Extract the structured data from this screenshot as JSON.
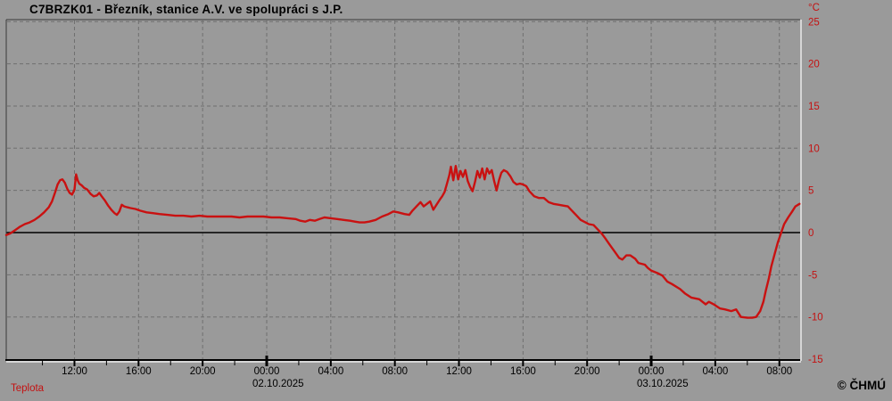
{
  "header": {
    "title": "C7BRZK01 - Březník, stanice A.V. ve spolupráci s J.P."
  },
  "footer": {
    "series_label": "Teplota",
    "copyright": "© ČHMÚ"
  },
  "colors": {
    "background": "#9a9a9a",
    "line": "#c91111",
    "axis_labels_y": "#c41111",
    "axis_labels_x": "#000000",
    "grid": "#6f6f6f",
    "axis": "#000000",
    "frame_dark": "#3a3a3a",
    "frame_light": "#e9e9e9"
  },
  "chart_data": {
    "type": "line",
    "title": "C7BRZK01 - Březník, stanice A.V. ve spolupráci s J.P.",
    "legend_position": "bottom-left",
    "grid": "dashed, every 4 h vertical and every 5 °C horizontal, solid black zero line",
    "y_axis": {
      "unit": "°C",
      "ticks": [
        25,
        20,
        15,
        10,
        5,
        0,
        -5,
        -10,
        -15
      ],
      "range": [
        -15,
        25
      ],
      "labels_side": "right",
      "zero_line_solid": true
    },
    "x_axis": {
      "unit": "time",
      "hours_from": "00:00 02.10.2025",
      "range_h": [
        -16.26,
        33.35
      ],
      "minor_tick_every_h": 2,
      "ticks": [
        {
          "t": -12,
          "label": "12:00"
        },
        {
          "t": -8,
          "label": "16:00"
        },
        {
          "t": -4,
          "label": "20:00"
        },
        {
          "t": 0,
          "label": "00:00",
          "midnight": true
        },
        {
          "t": 4,
          "label": "04:00"
        },
        {
          "t": 8,
          "label": "08:00"
        },
        {
          "t": 12,
          "label": "12:00"
        },
        {
          "t": 16,
          "label": "16:00"
        },
        {
          "t": 20,
          "label": "20:00"
        },
        {
          "t": 24,
          "label": "00:00",
          "midnight": true
        },
        {
          "t": 28,
          "label": "04:00"
        },
        {
          "t": 32,
          "label": "08:00"
        }
      ],
      "date_labels": [
        {
          "t": 0,
          "label": "02.10.2025"
        },
        {
          "t": 24,
          "label": "03.10.2025"
        }
      ]
    },
    "series": [
      {
        "name": "Teplota",
        "color": "#c91111",
        "points": [
          [
            -16.26,
            -0.3
          ],
          [
            -16.0,
            -0.1
          ],
          [
            -15.7,
            0.3
          ],
          [
            -15.4,
            0.7
          ],
          [
            -15.1,
            1.0
          ],
          [
            -14.8,
            1.2
          ],
          [
            -14.5,
            1.5
          ],
          [
            -14.2,
            1.9
          ],
          [
            -13.9,
            2.4
          ],
          [
            -13.6,
            3.0
          ],
          [
            -13.4,
            3.7
          ],
          [
            -13.2,
            4.8
          ],
          [
            -13.05,
            5.7
          ],
          [
            -12.9,
            6.2
          ],
          [
            -12.75,
            6.3
          ],
          [
            -12.6,
            5.9
          ],
          [
            -12.45,
            5.2
          ],
          [
            -12.3,
            4.7
          ],
          [
            -12.15,
            4.5
          ],
          [
            -12.0,
            5.1
          ],
          [
            -11.9,
            6.9
          ],
          [
            -11.8,
            6.2
          ],
          [
            -11.7,
            5.8
          ],
          [
            -11.55,
            5.6
          ],
          [
            -11.4,
            5.3
          ],
          [
            -11.2,
            5.1
          ],
          [
            -11.0,
            4.6
          ],
          [
            -10.8,
            4.3
          ],
          [
            -10.6,
            4.4
          ],
          [
            -10.45,
            4.7
          ],
          [
            -10.3,
            4.3
          ],
          [
            -10.1,
            3.8
          ],
          [
            -9.9,
            3.2
          ],
          [
            -9.7,
            2.7
          ],
          [
            -9.5,
            2.3
          ],
          [
            -9.35,
            2.1
          ],
          [
            -9.2,
            2.5
          ],
          [
            -9.05,
            3.3
          ],
          [
            -8.9,
            3.1
          ],
          [
            -8.7,
            3.0
          ],
          [
            -8.5,
            2.9
          ],
          [
            -8.2,
            2.8
          ],
          [
            -7.9,
            2.6
          ],
          [
            -7.5,
            2.4
          ],
          [
            -7.1,
            2.3
          ],
          [
            -6.7,
            2.2
          ],
          [
            -6.2,
            2.1
          ],
          [
            -5.7,
            2.0
          ],
          [
            -5.2,
            2.0
          ],
          [
            -4.7,
            1.9
          ],
          [
            -4.2,
            2.0
          ],
          [
            -3.7,
            1.9
          ],
          [
            -3.2,
            1.9
          ],
          [
            -2.7,
            1.9
          ],
          [
            -2.2,
            1.9
          ],
          [
            -1.7,
            1.8
          ],
          [
            -1.2,
            1.9
          ],
          [
            -0.7,
            1.9
          ],
          [
            -0.2,
            1.9
          ],
          [
            0.3,
            1.8
          ],
          [
            0.8,
            1.8
          ],
          [
            1.3,
            1.7
          ],
          [
            1.8,
            1.6
          ],
          [
            2.1,
            1.4
          ],
          [
            2.4,
            1.3
          ],
          [
            2.7,
            1.5
          ],
          [
            3.0,
            1.4
          ],
          [
            3.3,
            1.6
          ],
          [
            3.6,
            1.8
          ],
          [
            4.0,
            1.7
          ],
          [
            4.4,
            1.6
          ],
          [
            4.8,
            1.5
          ],
          [
            5.2,
            1.4
          ],
          [
            5.5,
            1.3
          ],
          [
            5.8,
            1.2
          ],
          [
            6.1,
            1.2
          ],
          [
            6.4,
            1.3
          ],
          [
            6.8,
            1.5
          ],
          [
            7.2,
            1.9
          ],
          [
            7.6,
            2.2
          ],
          [
            7.9,
            2.5
          ],
          [
            8.2,
            2.4
          ],
          [
            8.6,
            2.2
          ],
          [
            8.9,
            2.1
          ],
          [
            9.1,
            2.6
          ],
          [
            9.4,
            3.2
          ],
          [
            9.6,
            3.6
          ],
          [
            9.8,
            3.1
          ],
          [
            10.0,
            3.4
          ],
          [
            10.2,
            3.7
          ],
          [
            10.4,
            2.7
          ],
          [
            10.6,
            3.3
          ],
          [
            10.8,
            3.9
          ],
          [
            10.95,
            4.3
          ],
          [
            11.1,
            4.8
          ],
          [
            11.25,
            5.8
          ],
          [
            11.4,
            6.8
          ],
          [
            11.5,
            7.8
          ],
          [
            11.65,
            6.2
          ],
          [
            11.8,
            7.9
          ],
          [
            11.95,
            6.3
          ],
          [
            12.1,
            7.3
          ],
          [
            12.25,
            6.6
          ],
          [
            12.4,
            7.4
          ],
          [
            12.55,
            6.1
          ],
          [
            12.7,
            5.4
          ],
          [
            12.85,
            4.9
          ],
          [
            13.0,
            6.0
          ],
          [
            13.15,
            7.3
          ],
          [
            13.3,
            6.5
          ],
          [
            13.45,
            7.6
          ],
          [
            13.6,
            6.3
          ],
          [
            13.75,
            7.6
          ],
          [
            13.9,
            7.0
          ],
          [
            14.05,
            7.4
          ],
          [
            14.2,
            6.1
          ],
          [
            14.35,
            5.0
          ],
          [
            14.5,
            6.2
          ],
          [
            14.65,
            7.1
          ],
          [
            14.8,
            7.4
          ],
          [
            15.0,
            7.2
          ],
          [
            15.2,
            6.7
          ],
          [
            15.4,
            6.0
          ],
          [
            15.6,
            5.7
          ],
          [
            15.8,
            5.8
          ],
          [
            16.0,
            5.7
          ],
          [
            16.2,
            5.5
          ],
          [
            16.4,
            4.9
          ],
          [
            16.7,
            4.3
          ],
          [
            17.0,
            4.1
          ],
          [
            17.3,
            4.1
          ],
          [
            17.6,
            3.6
          ],
          [
            17.9,
            3.4
          ],
          [
            18.2,
            3.3
          ],
          [
            18.5,
            3.2
          ],
          [
            18.8,
            3.1
          ],
          [
            19.0,
            2.7
          ],
          [
            19.3,
            2.1
          ],
          [
            19.6,
            1.5
          ],
          [
            19.9,
            1.2
          ],
          [
            20.1,
            1.0
          ],
          [
            20.4,
            0.9
          ],
          [
            20.7,
            0.3
          ],
          [
            20.9,
            -0.1
          ],
          [
            21.1,
            -0.6
          ],
          [
            21.4,
            -1.4
          ],
          [
            21.7,
            -2.2
          ],
          [
            22.0,
            -3.0
          ],
          [
            22.2,
            -3.2
          ],
          [
            22.45,
            -2.7
          ],
          [
            22.7,
            -2.7
          ],
          [
            23.0,
            -3.1
          ],
          [
            23.2,
            -3.6
          ],
          [
            23.6,
            -3.8
          ],
          [
            23.8,
            -4.2
          ],
          [
            24.0,
            -4.5
          ],
          [
            24.4,
            -4.8
          ],
          [
            24.7,
            -5.1
          ],
          [
            25.0,
            -5.8
          ],
          [
            25.3,
            -6.1
          ],
          [
            25.8,
            -6.7
          ],
          [
            26.1,
            -7.2
          ],
          [
            26.5,
            -7.7
          ],
          [
            27.0,
            -7.9
          ],
          [
            27.4,
            -8.5
          ],
          [
            27.6,
            -8.2
          ],
          [
            27.9,
            -8.5
          ],
          [
            28.3,
            -9.0
          ],
          [
            28.6,
            -9.1
          ],
          [
            29.0,
            -9.3
          ],
          [
            29.3,
            -9.1
          ],
          [
            29.6,
            -10.0
          ],
          [
            30.0,
            -10.1
          ],
          [
            30.3,
            -10.1
          ],
          [
            30.55,
            -10.0
          ],
          [
            30.8,
            -9.3
          ],
          [
            31.0,
            -8.2
          ],
          [
            31.15,
            -6.9
          ],
          [
            31.35,
            -5.4
          ],
          [
            31.5,
            -4.0
          ],
          [
            31.7,
            -2.6
          ],
          [
            31.9,
            -1.2
          ],
          [
            32.1,
            -0.1
          ],
          [
            32.3,
            1.0
          ],
          [
            32.55,
            1.8
          ],
          [
            32.8,
            2.5
          ],
          [
            33.0,
            3.1
          ],
          [
            33.26,
            3.4
          ]
        ]
      }
    ]
  }
}
